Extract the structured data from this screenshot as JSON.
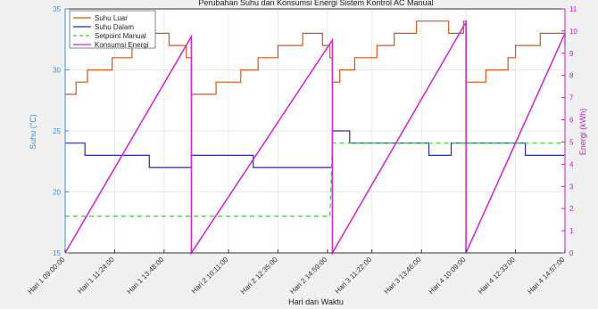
{
  "chart_data": {
    "type": "line",
    "title": "Perubahan Suhu dan Konsumsi Energi Sistem Kontrol AC Manual",
    "xlabel": "Hari dan Waktu",
    "ylabel_left": "Suhu (°C)",
    "ylabel_right": "Energi (kWh)",
    "ylim_left": [
      15,
      35
    ],
    "ylim_right": [
      0,
      11
    ],
    "yticks_left": [
      "15",
      "20",
      "25",
      "30",
      "35"
    ],
    "yticks_right": [
      "0",
      "1",
      "2",
      "3",
      "4",
      "5",
      "6",
      "7",
      "8",
      "9",
      "10",
      "11"
    ],
    "grid": true,
    "legend_position": "top-left",
    "x_tick_labels": [
      "Hari 1 09:00:00",
      "Hari 1 11:24:00",
      "Hari 1 13:48:00",
      "Hari 2 10:11:00",
      "Hari 2 12:35:00",
      "Hari 2 14:59:00",
      "Hari 3 11:22:00",
      "Hari 3 13:46:00",
      "Hari 4 10:09:00",
      "Hari 4 12:33:00",
      "Hari 4 14:57:00"
    ],
    "x_tick_index": [
      0,
      1,
      2,
      3.3,
      4.3,
      5.3,
      6.2,
      7.2,
      8.1,
      9.1,
      10.1
    ],
    "x_range": [
      0,
      10.1
    ],
    "series": [
      {
        "name": "Suhu Luar",
        "axis": "left",
        "color": "#d95319",
        "style": "solid",
        "points": [
          [
            0,
            28
          ],
          [
            0.22,
            28
          ],
          [
            0.22,
            29
          ],
          [
            0.45,
            29
          ],
          [
            0.45,
            30
          ],
          [
            0.95,
            30
          ],
          [
            0.95,
            31
          ],
          [
            1.35,
            31
          ],
          [
            1.35,
            32
          ],
          [
            1.75,
            32
          ],
          [
            1.75,
            33
          ],
          [
            2.1,
            33
          ],
          [
            2.1,
            32
          ],
          [
            2.45,
            32
          ],
          [
            2.45,
            31
          ],
          [
            2.55,
            31
          ],
          [
            2.55,
            28
          ],
          [
            3.05,
            28
          ],
          [
            3.05,
            29
          ],
          [
            3.55,
            29
          ],
          [
            3.55,
            30
          ],
          [
            3.9,
            30
          ],
          [
            3.9,
            31
          ],
          [
            4.3,
            31
          ],
          [
            4.3,
            32
          ],
          [
            4.8,
            32
          ],
          [
            4.8,
            33
          ],
          [
            5.2,
            33
          ],
          [
            5.2,
            32
          ],
          [
            5.35,
            32
          ],
          [
            5.35,
            31
          ],
          [
            5.4,
            31
          ],
          [
            5.4,
            29
          ],
          [
            5.55,
            29
          ],
          [
            5.55,
            30
          ],
          [
            5.85,
            30
          ],
          [
            5.85,
            31
          ],
          [
            6.3,
            31
          ],
          [
            6.3,
            32
          ],
          [
            6.65,
            32
          ],
          [
            6.65,
            33
          ],
          [
            7.1,
            33
          ],
          [
            7.1,
            34
          ],
          [
            7.75,
            34
          ],
          [
            7.75,
            33
          ],
          [
            8.05,
            33
          ],
          [
            8.05,
            34
          ],
          [
            8.1,
            34
          ],
          [
            8.1,
            29
          ],
          [
            8.5,
            29
          ],
          [
            8.5,
            30
          ],
          [
            8.95,
            30
          ],
          [
            8.95,
            31
          ],
          [
            9.1,
            31
          ],
          [
            9.1,
            32
          ],
          [
            9.6,
            32
          ],
          [
            9.6,
            33
          ],
          [
            10.1,
            33
          ],
          [
            10.1,
            32
          ]
        ]
      },
      {
        "name": "Suhu Dalam",
        "axis": "left",
        "color": "#2a2aa8",
        "style": "solid",
        "points": [
          [
            0,
            24
          ],
          [
            0.4,
            24
          ],
          [
            0.4,
            23
          ],
          [
            1.7,
            23
          ],
          [
            1.7,
            22
          ],
          [
            2.55,
            22
          ],
          [
            2.55,
            23
          ],
          [
            3.8,
            23
          ],
          [
            3.8,
            22
          ],
          [
            5.4,
            22
          ],
          [
            5.4,
            25
          ],
          [
            5.75,
            25
          ],
          [
            5.75,
            24
          ],
          [
            7.35,
            24
          ],
          [
            7.35,
            23
          ],
          [
            7.8,
            23
          ],
          [
            7.8,
            24
          ],
          [
            9.3,
            24
          ],
          [
            9.3,
            23
          ],
          [
            10.1,
            23
          ]
        ]
      },
      {
        "name": "Setpoint Manual",
        "axis": "left",
        "color": "#33cc33",
        "style": "dashed",
        "points": [
          [
            0,
            18
          ],
          [
            5.35,
            18
          ],
          [
            5.4,
            24
          ],
          [
            10.1,
            24
          ]
        ]
      },
      {
        "name": "Konsumsi Energi",
        "axis": "right",
        "color": "#d12bd1",
        "style": "solid",
        "points": [
          [
            0,
            0
          ],
          [
            2.55,
            9.75
          ],
          [
            2.55,
            0
          ],
          [
            5.4,
            9.6
          ],
          [
            5.4,
            0
          ],
          [
            8.1,
            10.4
          ],
          [
            8.1,
            0
          ],
          [
            10.1,
            9.9
          ]
        ]
      }
    ]
  }
}
